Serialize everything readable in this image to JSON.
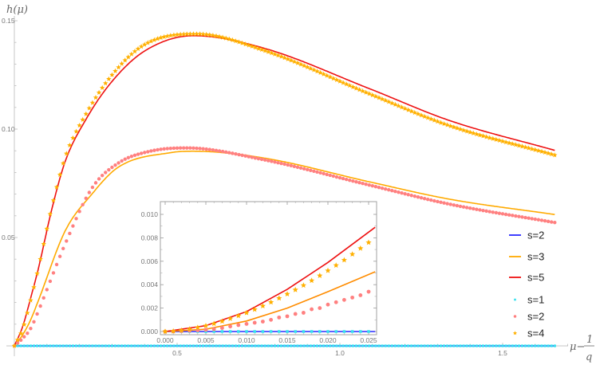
{
  "chart_data": {
    "type": "line",
    "main": {
      "ylabel": "h(μ)",
      "xlabel_prefix": "μ−",
      "xlabel_frac_num": "1",
      "xlabel_frac_den": "q",
      "xlim": [
        0,
        1.7
      ],
      "ylim": [
        0,
        0.15
      ],
      "xticks": [
        "0.5",
        "1.0",
        "1.5"
      ],
      "xtick_values": [
        0.5,
        1.0,
        1.5
      ],
      "yticks": [
        "0.05",
        "0.10",
        "0.15"
      ],
      "ytick_values": [
        0.05,
        0.1,
        0.15
      ],
      "marker_spacing": 0.01,
      "series": [
        {
          "name": "s=2",
          "kind": "line",
          "color": "#2a2aff",
          "points": [
            [
              0,
              0
            ],
            [
              1.66,
              0
            ]
          ]
        },
        {
          "name": "s=3",
          "kind": "line",
          "color": "#ffaa00",
          "points": [
            [
              0,
              0
            ],
            [
              0.025,
              0.005
            ],
            [
              0.05,
              0.012
            ],
            [
              0.074,
              0.021
            ],
            [
              0.156,
              0.053
            ],
            [
              0.238,
              0.07
            ],
            [
              0.319,
              0.0824
            ],
            [
              0.483,
              0.0892
            ],
            [
              0.55,
              0.0898
            ],
            [
              0.765,
              0.0867
            ],
            [
              1.09,
              0.0757
            ],
            [
              1.336,
              0.0677
            ],
            [
              1.66,
              0.0606
            ]
          ]
        },
        {
          "name": "s=5",
          "kind": "line",
          "color": "#ee1111",
          "points": [
            [
              0,
              0
            ],
            [
              0.025,
              0.0087
            ],
            [
              0.05,
              0.022
            ],
            [
              0.074,
              0.0358
            ],
            [
              0.115,
              0.063
            ],
            [
              0.156,
              0.085
            ],
            [
              0.22,
              0.1045
            ],
            [
              0.3,
              0.122
            ],
            [
              0.4,
              0.136
            ],
            [
              0.55,
              0.1431
            ],
            [
              0.765,
              0.1374
            ],
            [
              1.09,
              0.1187
            ],
            [
              1.336,
              0.104
            ],
            [
              1.66,
              0.0902
            ]
          ]
        },
        {
          "name": "s=1",
          "kind": "square",
          "color": "#33e0ee",
          "points": [
            [
              0,
              0
            ],
            [
              1.66,
              0
            ]
          ]
        },
        {
          "name": "s=2",
          "kind": "dot",
          "color": "#ff8080",
          "points": [
            [
              0,
              0
            ],
            [
              0.025,
              0.0034
            ],
            [
              0.05,
              0.008
            ],
            [
              0.074,
              0.0162
            ],
            [
              0.156,
              0.047
            ],
            [
              0.238,
              0.0727
            ],
            [
              0.319,
              0.0843
            ],
            [
              0.417,
              0.0898
            ],
            [
              0.53,
              0.0913
            ],
            [
              0.765,
              0.0859
            ],
            [
              1.09,
              0.0742
            ],
            [
              1.336,
              0.0654
            ],
            [
              1.66,
              0.0569
            ]
          ]
        },
        {
          "name": "s=4",
          "kind": "star",
          "color": "#ffb000",
          "points": [
            [
              0,
              0
            ],
            [
              0.025,
              0.0076
            ],
            [
              0.05,
              0.021
            ],
            [
              0.074,
              0.036
            ],
            [
              0.115,
              0.064
            ],
            [
              0.156,
              0.087
            ],
            [
              0.22,
              0.107
            ],
            [
              0.3,
              0.125
            ],
            [
              0.4,
              0.139
            ],
            [
              0.56,
              0.1439
            ],
            [
              0.765,
              0.1364
            ],
            [
              1.09,
              0.1163
            ],
            [
              1.336,
              0.1016
            ],
            [
              1.66,
              0.088
            ]
          ]
        }
      ]
    },
    "inset": {
      "xlim": [
        0,
        0.0258
      ],
      "ylim": [
        0,
        0.0108
      ],
      "xticks": [
        "0.000",
        "0.005",
        "0.010",
        "0.015",
        "0.020",
        "0.025"
      ],
      "xtick_values": [
        0,
        0.005,
        0.01,
        0.015,
        0.02,
        0.025
      ],
      "yticks": [
        "0.000",
        "0.002",
        "0.004",
        "0.006",
        "0.008",
        "0.010"
      ],
      "ytick_values": [
        0,
        0.002,
        0.004,
        0.006,
        0.008,
        0.01
      ],
      "marker_x": [
        0,
        0.001,
        0.002,
        0.003,
        0.004,
        0.005,
        0.006,
        0.007,
        0.008,
        0.009,
        0.01,
        0.011,
        0.012,
        0.013,
        0.014,
        0.015,
        0.016,
        0.017,
        0.018,
        0.019,
        0.02,
        0.021,
        0.022,
        0.023,
        0.024,
        0.025
      ],
      "series": [
        {
          "name": "s=2",
          "kind": "line",
          "color": "#2a2aff",
          "points": [
            [
              0,
              0
            ],
            [
              0.0258,
              0
            ]
          ]
        },
        {
          "name": "s=3",
          "kind": "line",
          "color": "#ff8c00",
          "points": [
            [
              0,
              0
            ],
            [
              0.005,
              0.0002
            ],
            [
              0.01,
              0.0009
            ],
            [
              0.015,
              0.002
            ],
            [
              0.02,
              0.0034
            ],
            [
              0.0258,
              0.0051
            ]
          ]
        },
        {
          "name": "s=5",
          "kind": "line",
          "color": "#ee1111",
          "points": [
            [
              0,
              0
            ],
            [
              0.005,
              0.0005
            ],
            [
              0.01,
              0.0017
            ],
            [
              0.015,
              0.0036
            ],
            [
              0.02,
              0.0059
            ],
            [
              0.0258,
              0.0089
            ]
          ]
        },
        {
          "name": "s=1",
          "kind": "square",
          "color": "#33e0ee",
          "values": [
            0,
            0,
            0,
            0,
            0,
            0,
            0,
            0,
            0,
            0,
            0,
            0,
            0,
            0,
            0,
            0,
            0,
            0,
            0,
            0,
            0,
            0,
            0,
            0,
            0,
            0
          ]
        },
        {
          "name": "s=2",
          "kind": "dot",
          "color": "#ff8080",
          "values": [
            0,
            1e-05,
            4e-05,
            7e-05,
            0.0001,
            0.00015,
            0.0002,
            0.0003,
            0.00043,
            0.00055,
            0.00065,
            0.00075,
            0.00085,
            0.001,
            0.0012,
            0.0013,
            0.0015,
            0.0016,
            0.0019,
            0.002,
            0.0023,
            0.0025,
            0.0027,
            0.0029,
            0.0031,
            0.0034
          ]
        },
        {
          "name": "s=4",
          "kind": "star",
          "color": "#ffb000",
          "values": [
            0,
            3e-05,
            0.0001,
            0.0002,
            0.00034,
            0.00049,
            0.00067,
            0.00087,
            0.0011,
            0.00134,
            0.0016,
            0.00188,
            0.00218,
            0.0025,
            0.00284,
            0.0032,
            0.00356,
            0.00394,
            0.00435,
            0.00477,
            0.0052,
            0.00565,
            0.0061,
            0.0066,
            0.0071,
            0.0076
          ]
        }
      ]
    },
    "legend": {
      "placement": "right",
      "entries": [
        {
          "label": "s=2",
          "kind": "line",
          "color": "#2a2aff"
        },
        {
          "label": "s=3",
          "kind": "line",
          "color": "#ffaa00"
        },
        {
          "label": "s=5",
          "kind": "line",
          "color": "#ee1111"
        },
        {
          "label": "s=1",
          "kind": "square",
          "color": "#33e0ee"
        },
        {
          "label": "s=2",
          "kind": "dot",
          "color": "#ff8080"
        },
        {
          "label": "s=4",
          "kind": "star",
          "color": "#ffb000"
        }
      ]
    }
  }
}
